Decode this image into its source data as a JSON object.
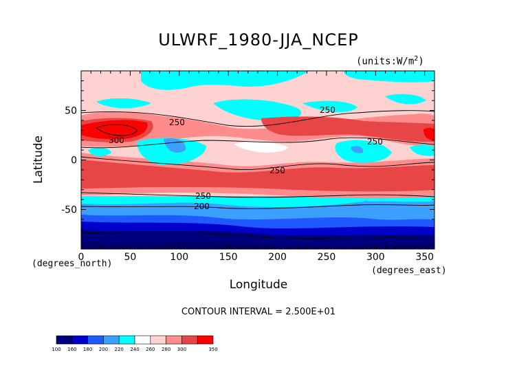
{
  "chart_data": {
    "type": "heatmap",
    "title": "ULWRF_1980-JJA_NCEP",
    "units": "(units:W/m^2)",
    "xlabel": "Longitude",
    "ylabel": "Latitude",
    "x_unit_label": "(degrees_east)",
    "y_unit_label": "(degrees_north)",
    "xlim": [
      0,
      360
    ],
    "ylim": [
      -90,
      90
    ],
    "x_ticks": [
      "0",
      "50",
      "100",
      "150",
      "200",
      "250",
      "300",
      "350"
    ],
    "y_ticks": [
      "50",
      "0",
      "-50"
    ],
    "contour_interval": "CONTOUR INTERVAL = 2.500E+01",
    "contour_labels": [
      "250",
      "250",
      "250",
      "250",
      "250",
      "200",
      "300"
    ],
    "colorbar": {
      "levels": [
        "100",
        "160",
        "180",
        "200",
        "220",
        "240",
        "260",
        "280",
        "300",
        "350"
      ],
      "colors": [
        "#00007f",
        "#0000cd",
        "#1e5aff",
        "#3ca0ff",
        "#00ffff",
        "#ffffff",
        "#ffd2d2",
        "#ff8c8c",
        "#e84646",
        "#ff0000"
      ]
    }
  }
}
